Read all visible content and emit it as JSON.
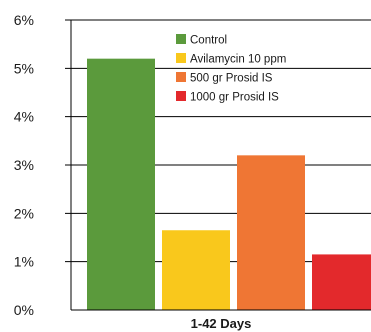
{
  "chart_data": {
    "type": "bar",
    "title": "",
    "xlabel": "1-42 Days",
    "ylabel": "",
    "categories": [
      "1-42 Days"
    ],
    "ylim": [
      0,
      6
    ],
    "yticks": [
      "0%",
      "1%",
      "2%",
      "3%",
      "4%",
      "5%",
      "6%"
    ],
    "grid": "horizontal",
    "legend_position": "top-right",
    "series": [
      {
        "name": "Control",
        "values": [
          5.2
        ],
        "color": "#5b9a3c"
      },
      {
        "name": "Avilamycin 10 ppm",
        "values": [
          1.65
        ],
        "color": "#f9c81c"
      },
      {
        "name": "500 gr Prosid IS",
        "values": [
          3.2
        ],
        "color": "#ef7634"
      },
      {
        "name": "1000 gr Prosid IS",
        "values": [
          1.15
        ],
        "color": "#e3292c"
      }
    ]
  }
}
